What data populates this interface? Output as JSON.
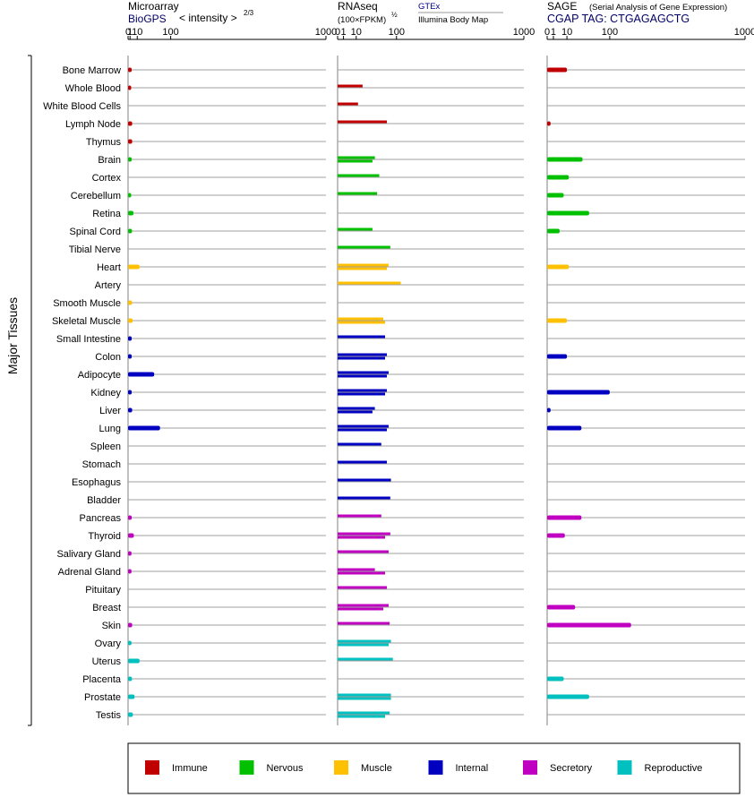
{
  "panels": {
    "microarray": {
      "title": "Microarray",
      "subtitle": "BioGPS",
      "unit_label": "< intensity >",
      "unit_exponent": "2/3",
      "ticks": [
        "0",
        "1",
        "10",
        "100",
        "1000"
      ]
    },
    "rnaseq": {
      "title": "RNAseq",
      "unit_label": "(100×FPKM)",
      "unit_exponent": "½",
      "legend_top": "GTEx",
      "legend_bottom": "Illumina Body Map",
      "ticks": [
        "0",
        "1",
        "10",
        "100",
        "1000"
      ]
    },
    "sage": {
      "title": "SAGE",
      "title_note": "(Serial Analysis of Gene Expression)",
      "subtitle": "CGAP TAG: CTGAGAGCTG",
      "ticks": [
        "0",
        "1",
        "10",
        "100",
        "1000"
      ]
    }
  },
  "y_axis_label": "Major Tissues",
  "legend": [
    {
      "label": "Immune",
      "color": "#c00000"
    },
    {
      "label": "Nervous",
      "color": "#00c000"
    },
    {
      "label": "Muscle",
      "color": "#ffc000"
    },
    {
      "label": "Internal",
      "color": "#0000c0"
    },
    {
      "label": "Secretory",
      "color": "#c000c0"
    },
    {
      "label": "Reproductive",
      "color": "#00c0c0"
    }
  ],
  "chart_data": {
    "type": "bar",
    "orientation": "horizontal",
    "x_scale": "power-transformed (ticks 0, 1, 10, 100, 1000)",
    "xlim": [
      0,
      1000
    ],
    "grid": true,
    "categories": [
      "Bone Marrow",
      "Whole Blood",
      "White Blood Cells",
      "Lymph Node",
      "Thymus",
      "Brain",
      "Cortex",
      "Cerebellum",
      "Retina",
      "Spinal Cord",
      "Tibial Nerve",
      "Heart",
      "Artery",
      "Smooth Muscle",
      "Skeletal Muscle",
      "Small Intestine",
      "Colon",
      "Adipocyte",
      "Kidney",
      "Liver",
      "Lung",
      "Spleen",
      "Stomach",
      "Esophagus",
      "Bladder",
      "Pancreas",
      "Thyroid",
      "Salivary Gland",
      "Adrenal Gland",
      "Pituitary",
      "Breast",
      "Skin",
      "Ovary",
      "Uterus",
      "Placenta",
      "Prostate",
      "Testis"
    ],
    "groups": [
      "Immune",
      "Immune",
      "Immune",
      "Immune",
      "Immune",
      "Nervous",
      "Nervous",
      "Nervous",
      "Nervous",
      "Nervous",
      "Nervous",
      "Muscle",
      "Muscle",
      "Muscle",
      "Muscle",
      "Internal",
      "Internal",
      "Internal",
      "Internal",
      "Internal",
      "Internal",
      "Internal",
      "Internal",
      "Internal",
      "Internal",
      "Secretory",
      "Secretory",
      "Secretory",
      "Secretory",
      "Secretory",
      "Secretory",
      "Secretory",
      "Reproductive",
      "Reproductive",
      "Reproductive",
      "Reproductive",
      "Reproductive"
    ],
    "series": [
      {
        "name": "Microarray",
        "values": [
          2.5,
          2,
          null,
          3,
          3,
          2.5,
          null,
          2,
          4.5,
          2.8,
          null,
          14,
          null,
          2.8,
          3.5,
          2.5,
          2.5,
          48,
          2.5,
          3,
          65,
          null,
          null,
          null,
          null,
          2.5,
          5,
          2.3,
          2.3,
          null,
          null,
          3,
          2.3,
          14,
          2.8,
          6,
          3.8
        ]
      },
      {
        "name": "RNAseq (GTEx)",
        "values": [
          null,
          18,
          12,
          70,
          null,
          40,
          50,
          45,
          null,
          35,
          80,
          75,
          115,
          null,
          60,
          65,
          70,
          75,
          70,
          40,
          75,
          55,
          70,
          82,
          80,
          55,
          80,
          75,
          40,
          70,
          75,
          78,
          82,
          88,
          null,
          82,
          78
        ]
      },
      {
        "name": "RNAseq (Illumina Body Map)",
        "values": [
          null,
          null,
          null,
          null,
          null,
          35,
          null,
          null,
          null,
          null,
          null,
          70,
          null,
          null,
          65,
          null,
          65,
          70,
          65,
          35,
          70,
          null,
          null,
          null,
          null,
          null,
          65,
          null,
          65,
          null,
          60,
          null,
          75,
          null,
          null,
          82,
          65
        ]
      },
      {
        "name": "SAGE",
        "values": [
          10,
          null,
          null,
          0.3,
          null,
          32,
          12,
          7,
          45,
          4,
          null,
          12,
          null,
          null,
          10,
          null,
          10,
          null,
          100,
          0.3,
          30,
          null,
          null,
          null,
          null,
          30,
          8,
          null,
          null,
          null,
          20,
          180,
          null,
          null,
          7,
          45,
          null
        ]
      }
    ]
  }
}
